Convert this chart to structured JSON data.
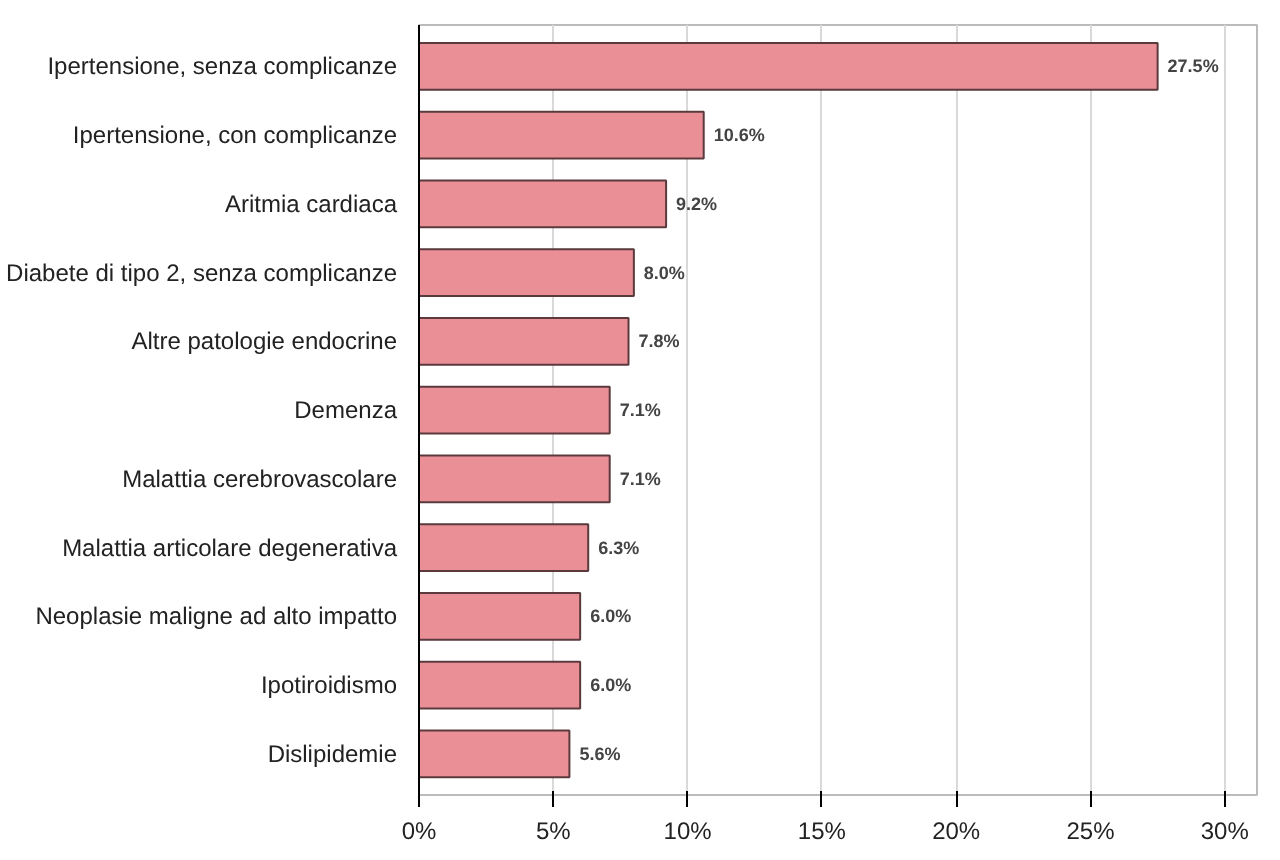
{
  "chart_data": {
    "type": "bar",
    "orientation": "horizontal",
    "categories": [
      "Ipertensione, senza complicanze",
      "Ipertensione, con complicanze",
      "Aritmia cardiaca",
      "Diabete di tipo 2, senza complicanze",
      "Altre patologie endocrine",
      "Demenza",
      "Malattia cerebrovascolare",
      "Malattia articolare degenerativa",
      "Neoplasie maligne ad alto impatto",
      "Ipotiroidismo",
      "Dislipidemie"
    ],
    "values": [
      27.5,
      10.6,
      9.2,
      8.0,
      7.8,
      7.1,
      7.1,
      6.3,
      6.0,
      6.0,
      5.6
    ],
    "value_labels": [
      "27.5%",
      "10.6%",
      "9.2%",
      "8.0%",
      "7.8%",
      "7.1%",
      "7.1%",
      "6.3%",
      "6.0%",
      "6.0%",
      "5.6%"
    ],
    "color": "#eb8f97",
    "xlim": [
      0,
      31.2
    ],
    "xticks": [
      {
        "value": 0,
        "label": "0%"
      },
      {
        "value": 5,
        "label": "5%"
      },
      {
        "value": 10,
        "label": "10%"
      },
      {
        "value": 15,
        "label": "15%"
      },
      {
        "value": 20,
        "label": "20%"
      },
      {
        "value": 25,
        "label": "25%"
      },
      {
        "value": 30,
        "label": "30%"
      }
    ],
    "grid": "x"
  }
}
